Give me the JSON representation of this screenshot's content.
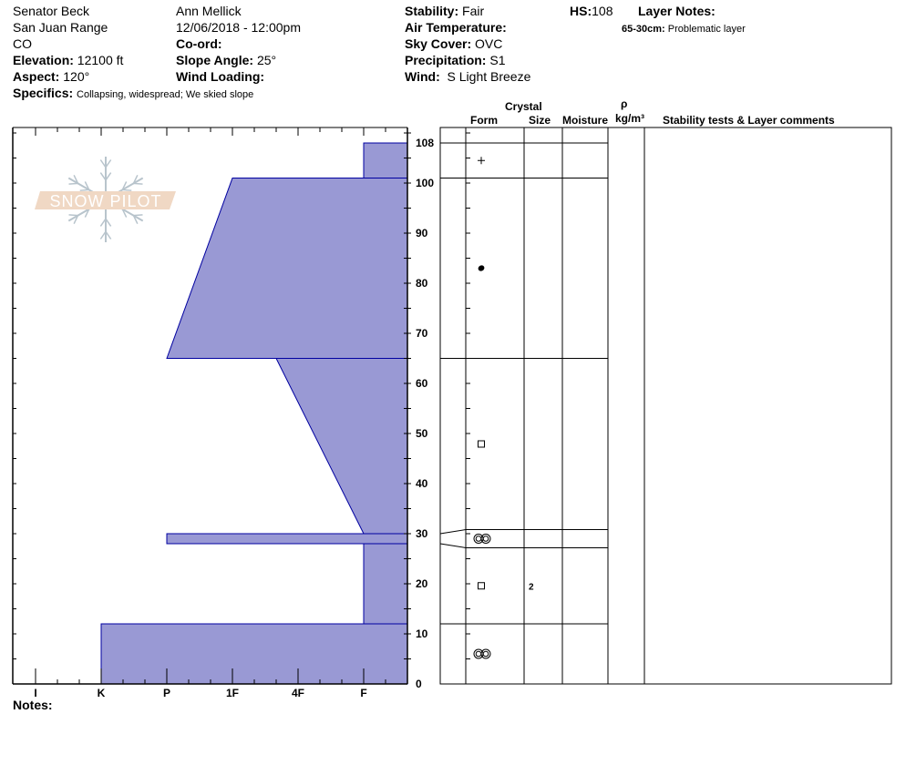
{
  "header": {
    "location": "Senator Beck",
    "range": "San Juan Range",
    "state": "CO",
    "elevation_label": "Elevation:",
    "elevation": "12100 ft",
    "aspect_label": "Aspect:",
    "aspect": "120°",
    "specifics_label": "Specifics:",
    "specifics": "Collapsing, widespread;  We skied slope",
    "observer": "Ann Mellick",
    "datetime": "12/06/2018 - 12:00pm",
    "coord_label": "Co-ord:",
    "slope_label": "Slope Angle:",
    "slope": "25°",
    "wind_loading_label": "Wind Loading:",
    "stability_label": "Stability:",
    "stability": "Fair",
    "air_temp_label": "Air Temperature:",
    "sky_label": "Sky Cover:",
    "sky": "OVC",
    "precip_label": "Precipitation:",
    "precip": "S1",
    "wind_label": "Wind:",
    "wind": "S Light Breeze",
    "hs_label": "HS:",
    "hs": "108",
    "layer_notes_label": "Layer Notes:",
    "layer_note_range": "65-30cm:",
    "layer_note_text": "Problematic layer"
  },
  "table_headers": {
    "crystal": "Crystal",
    "form": "Form",
    "size": "Size",
    "moisture": "Moisture",
    "rho": "ρ",
    "density_unit": "kg/m³",
    "comments": "Stability tests & Layer comments"
  },
  "notes_label": "Notes:",
  "logo_text": "SNOW PILOT",
  "colors": {
    "layer_fill": "#9999d4",
    "layer_stroke": "#0000a0",
    "logo_band": "#f0d8c4",
    "logo_flake": "#b8c4cc"
  },
  "chart_data": {
    "type": "area",
    "xlabel": "",
    "ylabel": "",
    "x_tick_labels": [
      "I",
      "K",
      "P",
      "1F",
      "4F",
      "F"
    ],
    "y_tick_labels": [
      "0",
      "10",
      "20",
      "30",
      "40",
      "50",
      "60",
      "70",
      "80",
      "90",
      "100",
      "108"
    ],
    "ylim": [
      0,
      111
    ],
    "layers": [
      {
        "bottom": 0,
        "top": 12,
        "hardness_bottom": "K",
        "hardness_top": "K",
        "form": "melt-cluster",
        "size": ""
      },
      {
        "bottom": 12,
        "top": 28,
        "hardness_bottom": "F",
        "hardness_top": "F",
        "form": "facets",
        "size": "2"
      },
      {
        "bottom": 28,
        "top": 30,
        "hardness_bottom": "P",
        "hardness_top": "P",
        "form": "melt-cluster",
        "size": ""
      },
      {
        "bottom": 30,
        "top": 65,
        "hardness_bottom": "F",
        "hardness_top": "4F-",
        "form": "facets",
        "size": ""
      },
      {
        "bottom": 65,
        "top": 101,
        "hardness_bottom": "P",
        "hardness_top": "1F",
        "form": "rounded",
        "size": ""
      },
      {
        "bottom": 101,
        "top": 108,
        "hardness_bottom": "F",
        "hardness_top": "F",
        "form": "precipitation",
        "size": ""
      }
    ]
  }
}
